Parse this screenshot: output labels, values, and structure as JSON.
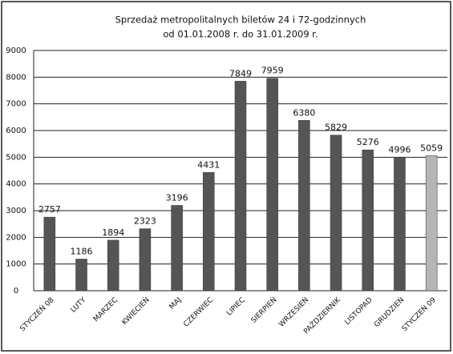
{
  "chart_data": {
    "type": "bar",
    "title": "Sprzedaż metropolitalnych biletów 24 i 72-godzinnych",
    "subtitle": "od 01.01.2008 r. do 31.01.2009 r.",
    "categories": [
      "STYCZEŃ 08",
      "LUTY",
      "MARZEC",
      "KWIECIEŃ",
      "MAJ",
      "CZERWIEC",
      "LIPIEC",
      "SIERPIEŃ",
      "WRZESIEŃ",
      "PAŹDZIERNIK",
      "LISTOPAD",
      "GRUDZIEŃ",
      "STYCZEŃ 09"
    ],
    "values": [
      2757,
      1186,
      1894,
      2323,
      3196,
      4431,
      7849,
      7959,
      6380,
      5829,
      5276,
      4996,
      5059
    ],
    "colors": [
      "#555555",
      "#555555",
      "#555555",
      "#555555",
      "#555555",
      "#555555",
      "#555555",
      "#555555",
      "#555555",
      "#555555",
      "#555555",
      "#555555",
      "#b5b5b5"
    ],
    "ylim": [
      0,
      9000
    ],
    "yticks": [
      0,
      1000,
      2000,
      3000,
      4000,
      5000,
      6000,
      7000,
      8000,
      9000
    ],
    "grid": true
  }
}
